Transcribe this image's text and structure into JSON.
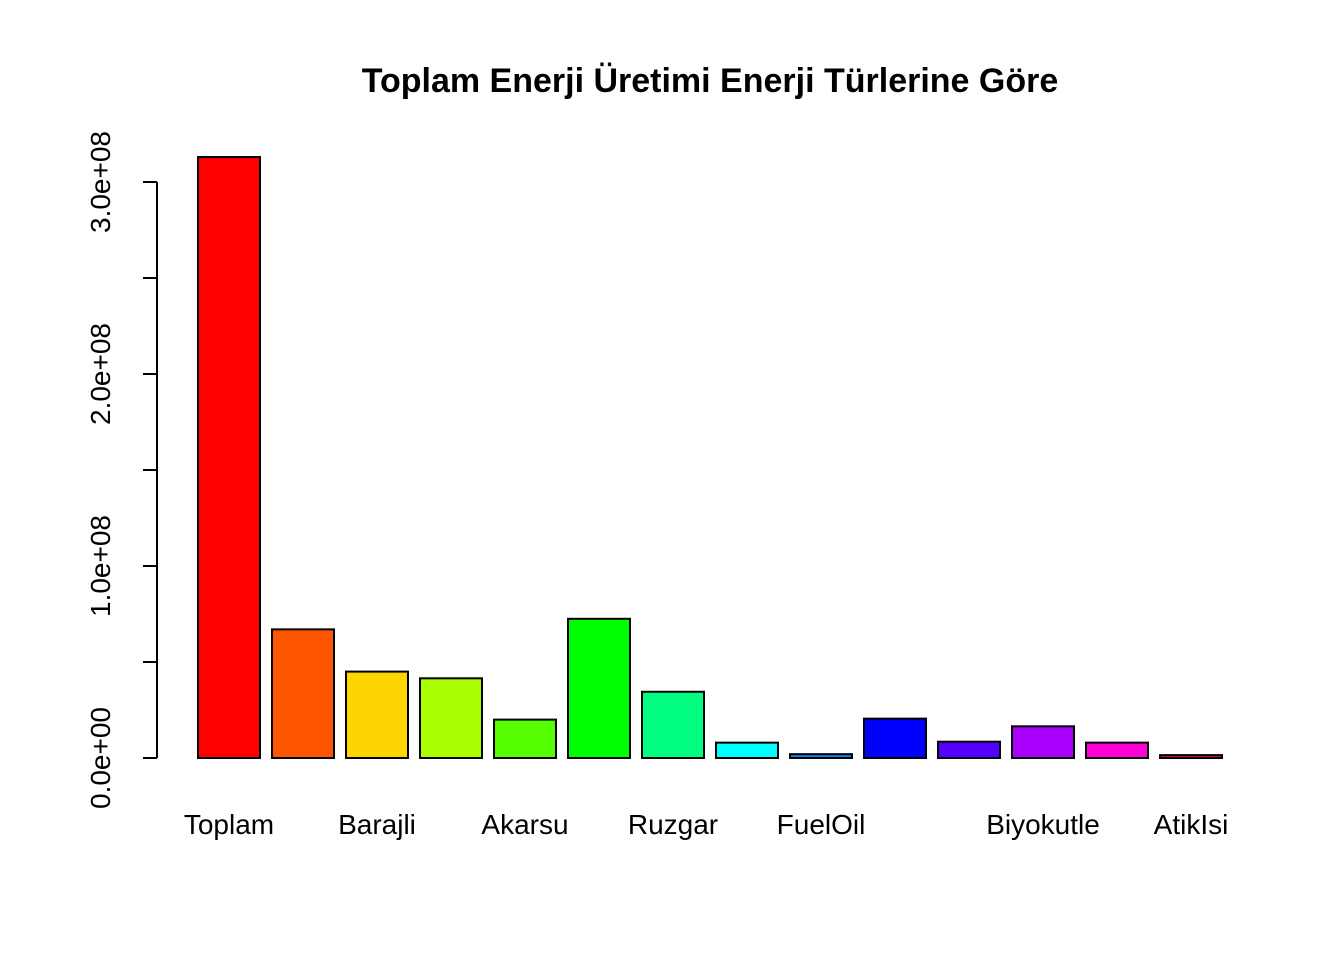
{
  "chart_data": {
    "type": "bar",
    "title": "Toplam Enerji Üretimi Enerji Türlerine Göre",
    "xlabel": "",
    "ylabel": "",
    "ylim": [
      0,
      330000000
    ],
    "y_ticks": [
      0,
      50000000,
      100000000,
      150000000,
      200000000,
      250000000,
      300000000
    ],
    "y_tick_labels": [
      "0.0e+00",
      "",
      "1.0e+08",
      "",
      "2.0e+08",
      "",
      "3.0e+08"
    ],
    "categories": [
      "Toplam",
      "",
      "Barajli",
      "",
      "Akarsu",
      "",
      "Ruzgar",
      "",
      "FuelOil",
      "",
      "",
      "Biyokutle",
      "",
      "AtikIsi"
    ],
    "values": [
      313000000,
      67000000,
      45000000,
      41500000,
      20000000,
      72500000,
      34500000,
      8000000,
      2000000,
      20500000,
      8500000,
      16500000,
      8000000,
      1500000
    ],
    "colors": [
      "#FF0000",
      "#FF5500",
      "#FFD500",
      "#AAFF00",
      "#55FF00",
      "#00FF00",
      "#00FF80",
      "#00FFFF",
      "#0080FF",
      "#0000FF",
      "#5500FF",
      "#AA00FF",
      "#FF00D5",
      "#FF0055"
    ],
    "grid": false,
    "legend": "none"
  }
}
